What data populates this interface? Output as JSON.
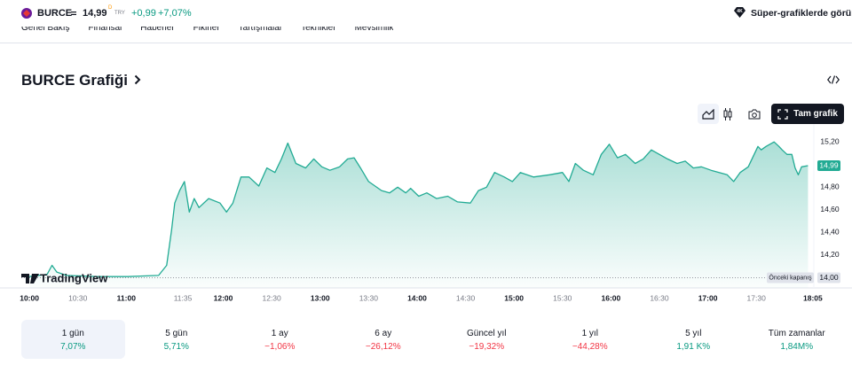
{
  "header": {
    "symbol": "BURCE",
    "price": "14,99",
    "price_flag": "D",
    "currency": "TRY",
    "change": "+0,99",
    "change_percent": "+7,07%",
    "cta": "Süper-grafiklerde görün"
  },
  "tabs": [
    "Genel Bakış",
    "Finansal",
    "Haberler",
    "Fikirler",
    "Tartışmalar",
    "Teknikler",
    "Mevsimlik"
  ],
  "section_title": "BURCE Grafiği",
  "toolbar": {
    "full_chart": "Tam grafik"
  },
  "chart_data": {
    "type": "area",
    "color": "#22ab94",
    "watermark": "TradingView",
    "x": [
      600,
      611,
      614,
      617,
      623,
      642,
      661,
      680,
      685,
      688,
      690,
      693,
      696,
      699,
      702,
      705,
      711,
      718,
      722,
      726,
      731,
      736,
      742,
      747,
      752,
      756,
      760,
      765,
      771,
      776,
      781,
      786,
      792,
      797,
      801,
      805,
      810,
      818,
      823,
      828,
      833,
      836,
      841,
      846,
      852,
      859,
      865,
      873,
      878,
      883,
      888,
      894,
      899,
      904,
      912,
      922,
      930,
      934,
      938,
      943,
      949,
      954,
      959,
      964,
      969,
      975,
      980,
      985,
      990,
      995,
      1001,
      1006,
      1011,
      1016,
      1022,
      1027,
      1032,
      1036,
      1040,
      1045,
      1051,
      1053,
      1056,
      1061,
      1064,
      1066,
      1069,
      1072,
      1074,
      1076,
      1078,
      1082
    ],
    "values": [
      14.01,
      14.03,
      14.11,
      14.05,
      14.02,
      14.01,
      14.01,
      14.02,
      14.11,
      14.42,
      14.66,
      14.77,
      14.85,
      14.58,
      14.7,
      14.62,
      14.7,
      14.66,
      14.58,
      14.66,
      14.89,
      14.89,
      14.81,
      14.97,
      14.93,
      15.05,
      15.19,
      15.01,
      14.97,
      15.05,
      14.98,
      14.95,
      14.98,
      15.05,
      15.06,
      14.97,
      14.85,
      14.77,
      14.75,
      14.8,
      14.75,
      14.79,
      14.72,
      14.75,
      14.7,
      14.72,
      14.67,
      14.66,
      14.77,
      14.8,
      14.93,
      14.89,
      14.85,
      14.93,
      14.89,
      14.91,
      14.93,
      14.85,
      15.01,
      14.95,
      14.91,
      15.09,
      15.18,
      15.06,
      15.09,
      15.01,
      15.05,
      15.13,
      15.09,
      15.05,
      15.01,
      15.03,
      14.97,
      14.98,
      14.95,
      14.93,
      14.91,
      14.85,
      14.93,
      14.98,
      15.16,
      15.13,
      15.16,
      15.2,
      15.16,
      15.13,
      15.09,
      15.09,
      14.97,
      14.91,
      14.98,
      14.99
    ],
    "xlim": [
      595,
      1090
    ],
    "ylim": [
      13.91,
      15.28
    ],
    "xticks": [
      {
        "value": 600,
        "label": "10:00"
      },
      {
        "value": 630,
        "label": "10:30"
      },
      {
        "value": 660,
        "label": "11:00"
      },
      {
        "value": 695,
        "label": "11:35"
      },
      {
        "value": 720,
        "label": "12:00"
      },
      {
        "value": 750,
        "label": "12:30"
      },
      {
        "value": 780,
        "label": "13:00"
      },
      {
        "value": 810,
        "label": "13:30"
      },
      {
        "value": 840,
        "label": "14:00"
      },
      {
        "value": 870,
        "label": "14:30"
      },
      {
        "value": 900,
        "label": "15:00"
      },
      {
        "value": 930,
        "label": "15:30"
      },
      {
        "value": 960,
        "label": "16:00"
      },
      {
        "value": 990,
        "label": "16:30"
      },
      {
        "value": 1020,
        "label": "17:00"
      },
      {
        "value": 1050,
        "label": "17:30"
      },
      {
        "value": 1085,
        "label": "18:05"
      }
    ],
    "yticks": [
      {
        "value": 15.2,
        "label": "15,20"
      },
      {
        "value": 14.8,
        "label": "14,80"
      },
      {
        "value": 14.6,
        "label": "14,60"
      },
      {
        "value": 14.4,
        "label": "14,40"
      },
      {
        "value": 14.2,
        "label": "14,20"
      }
    ],
    "last_price": {
      "value": 14.99,
      "label": "14,99"
    },
    "previous_close": {
      "label": "Önceki kapanış",
      "value": 14,
      "value_label": "14,00"
    }
  },
  "periods": [
    {
      "label": "1 gün",
      "change": "7,07%"
    },
    {
      "label": "5 gün",
      "change": "5,71%"
    },
    {
      "label": "1 ay",
      "change": "−1,06%"
    },
    {
      "label": "6 ay",
      "change": "−26,12%"
    },
    {
      "label": "Güncel yıl",
      "change": "−19,32%"
    },
    {
      "label": "1 yıl",
      "change": "−44,28%"
    },
    {
      "label": "5 yıl",
      "change": "1,91 K%"
    },
    {
      "label": "Tüm zamanlar",
      "change": "1,84M%"
    }
  ]
}
